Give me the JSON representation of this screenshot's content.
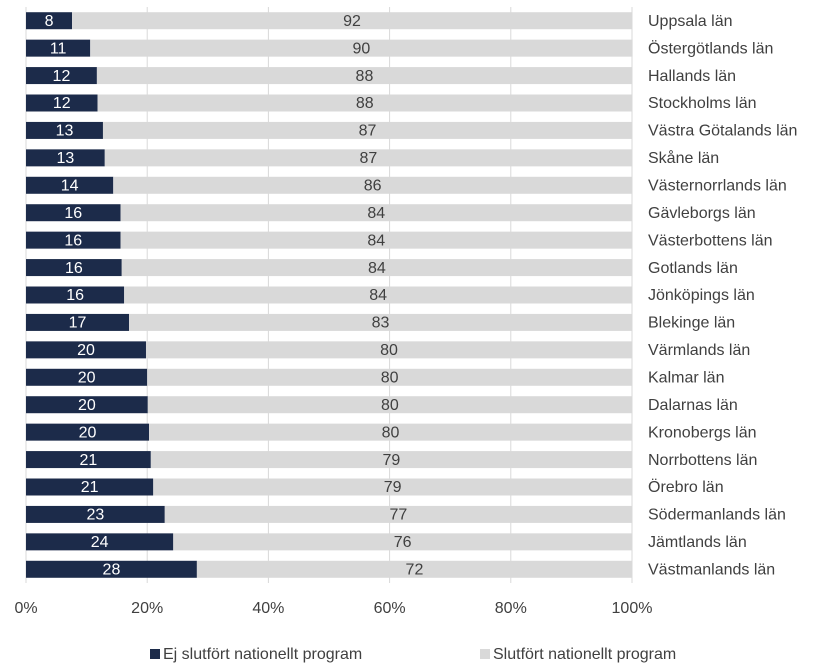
{
  "chart_data": {
    "type": "stacked_bar_horizontal",
    "categories": [
      "Uppsala län",
      "Östergötlands län",
      "Hallands län",
      "Stockholms län",
      "Västra Götalands län",
      "Skåne län",
      "Västernorrlands län",
      "Gävleborgs län",
      "Västerbottens län",
      "Gotlands län",
      "Jönköpings län",
      "Blekinge län",
      "Värmlands län",
      "Kalmar län",
      "Dalarnas län",
      "Kronobergs län",
      "Norrbottens län",
      "Örebro län",
      "Södermanlands län",
      "Jämtlands län",
      "Västmanlands län"
    ],
    "series": [
      {
        "name": "Ej slutfört nationellt program",
        "color": "#1c2b4a",
        "values": [
          7.6,
          10.6,
          11.7,
          11.8,
          12.7,
          13.0,
          14.4,
          15.6,
          15.6,
          15.8,
          16.2,
          17.0,
          19.8,
          20.0,
          20.1,
          20.3,
          20.6,
          21.0,
          22.9,
          24.3,
          28.2
        ],
        "value_labels": [
          "8",
          "11",
          "12",
          "12",
          "13",
          "13",
          "14",
          "16",
          "16",
          "16",
          "16",
          "17",
          "20",
          "20",
          "20",
          "20",
          "21",
          "21",
          "23",
          "24",
          "28"
        ]
      },
      {
        "name": "Slutfört nationellt program",
        "color": "#d9d9d9",
        "values": [
          92.4,
          89.5,
          88.3,
          88.2,
          87.3,
          87.0,
          85.6,
          84.4,
          84.4,
          84.2,
          83.8,
          83.0,
          80.2,
          80.0,
          79.9,
          79.7,
          79.4,
          79.0,
          77.1,
          75.7,
          71.8
        ],
        "value_labels": [
          "92",
          "90",
          "88",
          "88",
          "87",
          "87",
          "86",
          "84",
          "84",
          "84",
          "84",
          "83",
          "80",
          "80",
          "80",
          "80",
          "79",
          "79",
          "77",
          "76",
          "72"
        ]
      }
    ],
    "xlim": [
      0,
      100
    ],
    "xticks": [
      {
        "value": 0,
        "label": "0%"
      },
      {
        "value": 20,
        "label": "20%"
      },
      {
        "value": 40,
        "label": "40%"
      },
      {
        "value": 60,
        "label": "60%"
      },
      {
        "value": 80,
        "label": "80%"
      },
      {
        "value": 100,
        "label": "100%"
      }
    ],
    "grid": true,
    "legend": "bottom"
  }
}
